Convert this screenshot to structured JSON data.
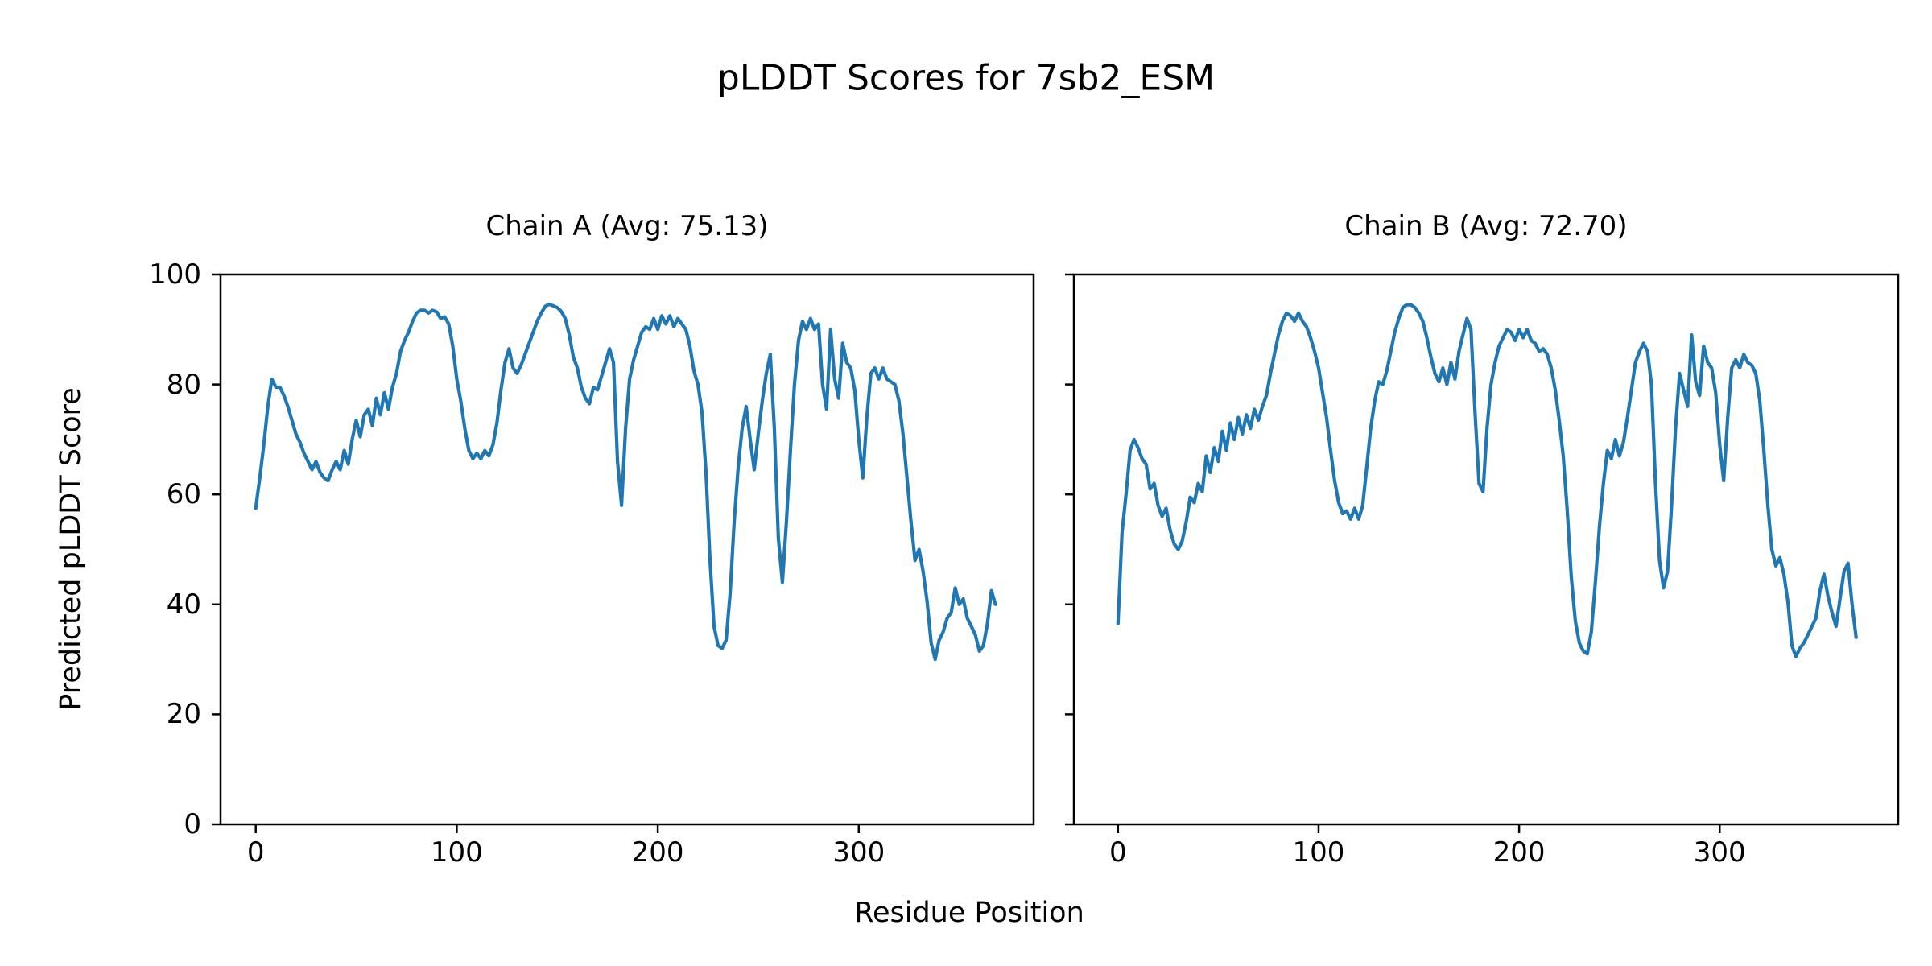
{
  "figure": {
    "suptitle": "pLDDT Scores for 7sb2_ESM",
    "xlabel": "Residue Position",
    "ylabel": "Predicted pLDDT Score",
    "background_color": "#ffffff",
    "text_color": "#000000",
    "spine_color": "#000000"
  },
  "chart_data": [
    {
      "type": "line",
      "title": "Chain A (Avg: 75.13)",
      "chain": "A",
      "average_plddt": 75.13,
      "line_color": "#1f77b4",
      "xlim": [
        -17.5,
        387
      ],
      "ylim": [
        0,
        100
      ],
      "xticks": [
        0,
        100,
        200,
        300
      ],
      "yticks": [
        0,
        20,
        40,
        60,
        80,
        100
      ],
      "show_ytick_labels": true,
      "grid": false,
      "x_start": 0,
      "x_step": 2,
      "values": [
        57.5,
        63,
        69,
        76,
        81,
        79.5,
        79.5,
        78,
        76,
        73.5,
        71,
        69.5,
        67.5,
        66,
        64.5,
        66,
        64,
        63,
        62.5,
        64.5,
        66,
        64.5,
        68,
        65.5,
        70,
        73.5,
        70.5,
        74.5,
        75.5,
        72.5,
        77.5,
        74.5,
        78.5,
        75.5,
        79.5,
        82,
        86,
        88,
        89.5,
        91.5,
        93,
        93.5,
        93.5,
        93,
        93.5,
        93.2,
        92,
        92.3,
        91,
        87,
        81,
        77,
        72,
        68,
        66.5,
        67.5,
        66.5,
        68,
        67,
        69,
        73,
        79,
        84,
        86.5,
        83,
        82,
        83.5,
        85.5,
        87.5,
        89.5,
        91.5,
        93,
        94.2,
        94.6,
        94.3,
        94,
        93.3,
        92,
        89,
        85,
        83,
        79.5,
        77.5,
        76.5,
        79.5,
        79,
        81.5,
        84,
        86.5,
        84,
        66,
        58,
        72,
        81,
        84.5,
        87,
        89.5,
        90.5,
        90,
        92,
        90,
        92.5,
        91,
        92.5,
        90.5,
        92,
        91,
        90,
        87,
        82.5,
        80,
        75,
        64,
        48,
        36,
        32.5,
        32,
        33.5,
        42,
        55,
        65,
        72,
        76,
        70,
        64.5,
        71,
        77,
        82,
        85.5,
        72,
        52,
        44,
        55,
        68,
        80,
        88,
        91.5,
        90,
        92,
        90,
        91,
        80,
        75.5,
        90,
        81,
        77.5,
        87.5,
        84,
        83,
        79,
        70,
        63,
        74,
        82,
        83,
        81,
        83,
        81,
        80.5,
        80,
        77,
        71,
        63,
        55,
        48,
        50,
        46,
        40.5,
        33,
        30,
        33.5,
        35,
        37.5,
        38.5,
        43,
        40,
        41,
        37.5,
        36,
        34.5,
        31.5,
        32.5,
        36.5,
        42.5,
        40
      ]
    },
    {
      "type": "line",
      "title": "Chain B (Avg: 72.70)",
      "chain": "B",
      "average_plddt": 72.7,
      "line_color": "#1f77b4",
      "xlim": [
        -22,
        389
      ],
      "ylim": [
        0,
        100
      ],
      "xticks": [
        0,
        100,
        200,
        300
      ],
      "yticks": [
        0,
        20,
        40,
        60,
        80,
        100
      ],
      "show_ytick_labels": false,
      "grid": false,
      "x_start": 0,
      "x_step": 2,
      "values": [
        36.5,
        53,
        60,
        68,
        70,
        68.5,
        66.5,
        65.5,
        61,
        62,
        58,
        56,
        57.5,
        53.5,
        51,
        50,
        51.5,
        55,
        59.5,
        58.5,
        62,
        60.5,
        67,
        64,
        68.5,
        66,
        71.5,
        68,
        73,
        70,
        74,
        71,
        74.5,
        72,
        75.5,
        73.5,
        76,
        78,
        82,
        85.5,
        89,
        91.5,
        93,
        92.5,
        91.5,
        93,
        91.5,
        90.5,
        88.5,
        86,
        83,
        78.5,
        74,
        68,
        62.5,
        58.5,
        56.5,
        57,
        55.5,
        57.5,
        55.5,
        58,
        65,
        72,
        77,
        80.5,
        80,
        82.5,
        86,
        89.5,
        92,
        94,
        94.5,
        94.5,
        94,
        93,
        91.5,
        88.5,
        85,
        82,
        80.5,
        83,
        80,
        84,
        81,
        86,
        89,
        92,
        90,
        75,
        62,
        60.5,
        72,
        80,
        84,
        87,
        88.5,
        90,
        89.5,
        88,
        90,
        88.5,
        90,
        88,
        87.5,
        86,
        86.5,
        85.5,
        83,
        79,
        73.5,
        67,
        57,
        45,
        37,
        33,
        31.5,
        31,
        35,
        44,
        54,
        62,
        68,
        66.5,
        70,
        67,
        69.5,
        74,
        79,
        84,
        86,
        87.5,
        86,
        80,
        62,
        48,
        43,
        46,
        58,
        72,
        82,
        79,
        76,
        89,
        80.5,
        78,
        87,
        84,
        83,
        78.5,
        69,
        62.5,
        74,
        83,
        84.5,
        83,
        85.5,
        84,
        83.5,
        82,
        77,
        68,
        58,
        50,
        47,
        48.5,
        45.5,
        40.5,
        32.5,
        30.5,
        32,
        33,
        34.5,
        36,
        37.5,
        42.5,
        45.5,
        41.5,
        38.5,
        36,
        41,
        46,
        47.5,
        40,
        34
      ]
    }
  ]
}
